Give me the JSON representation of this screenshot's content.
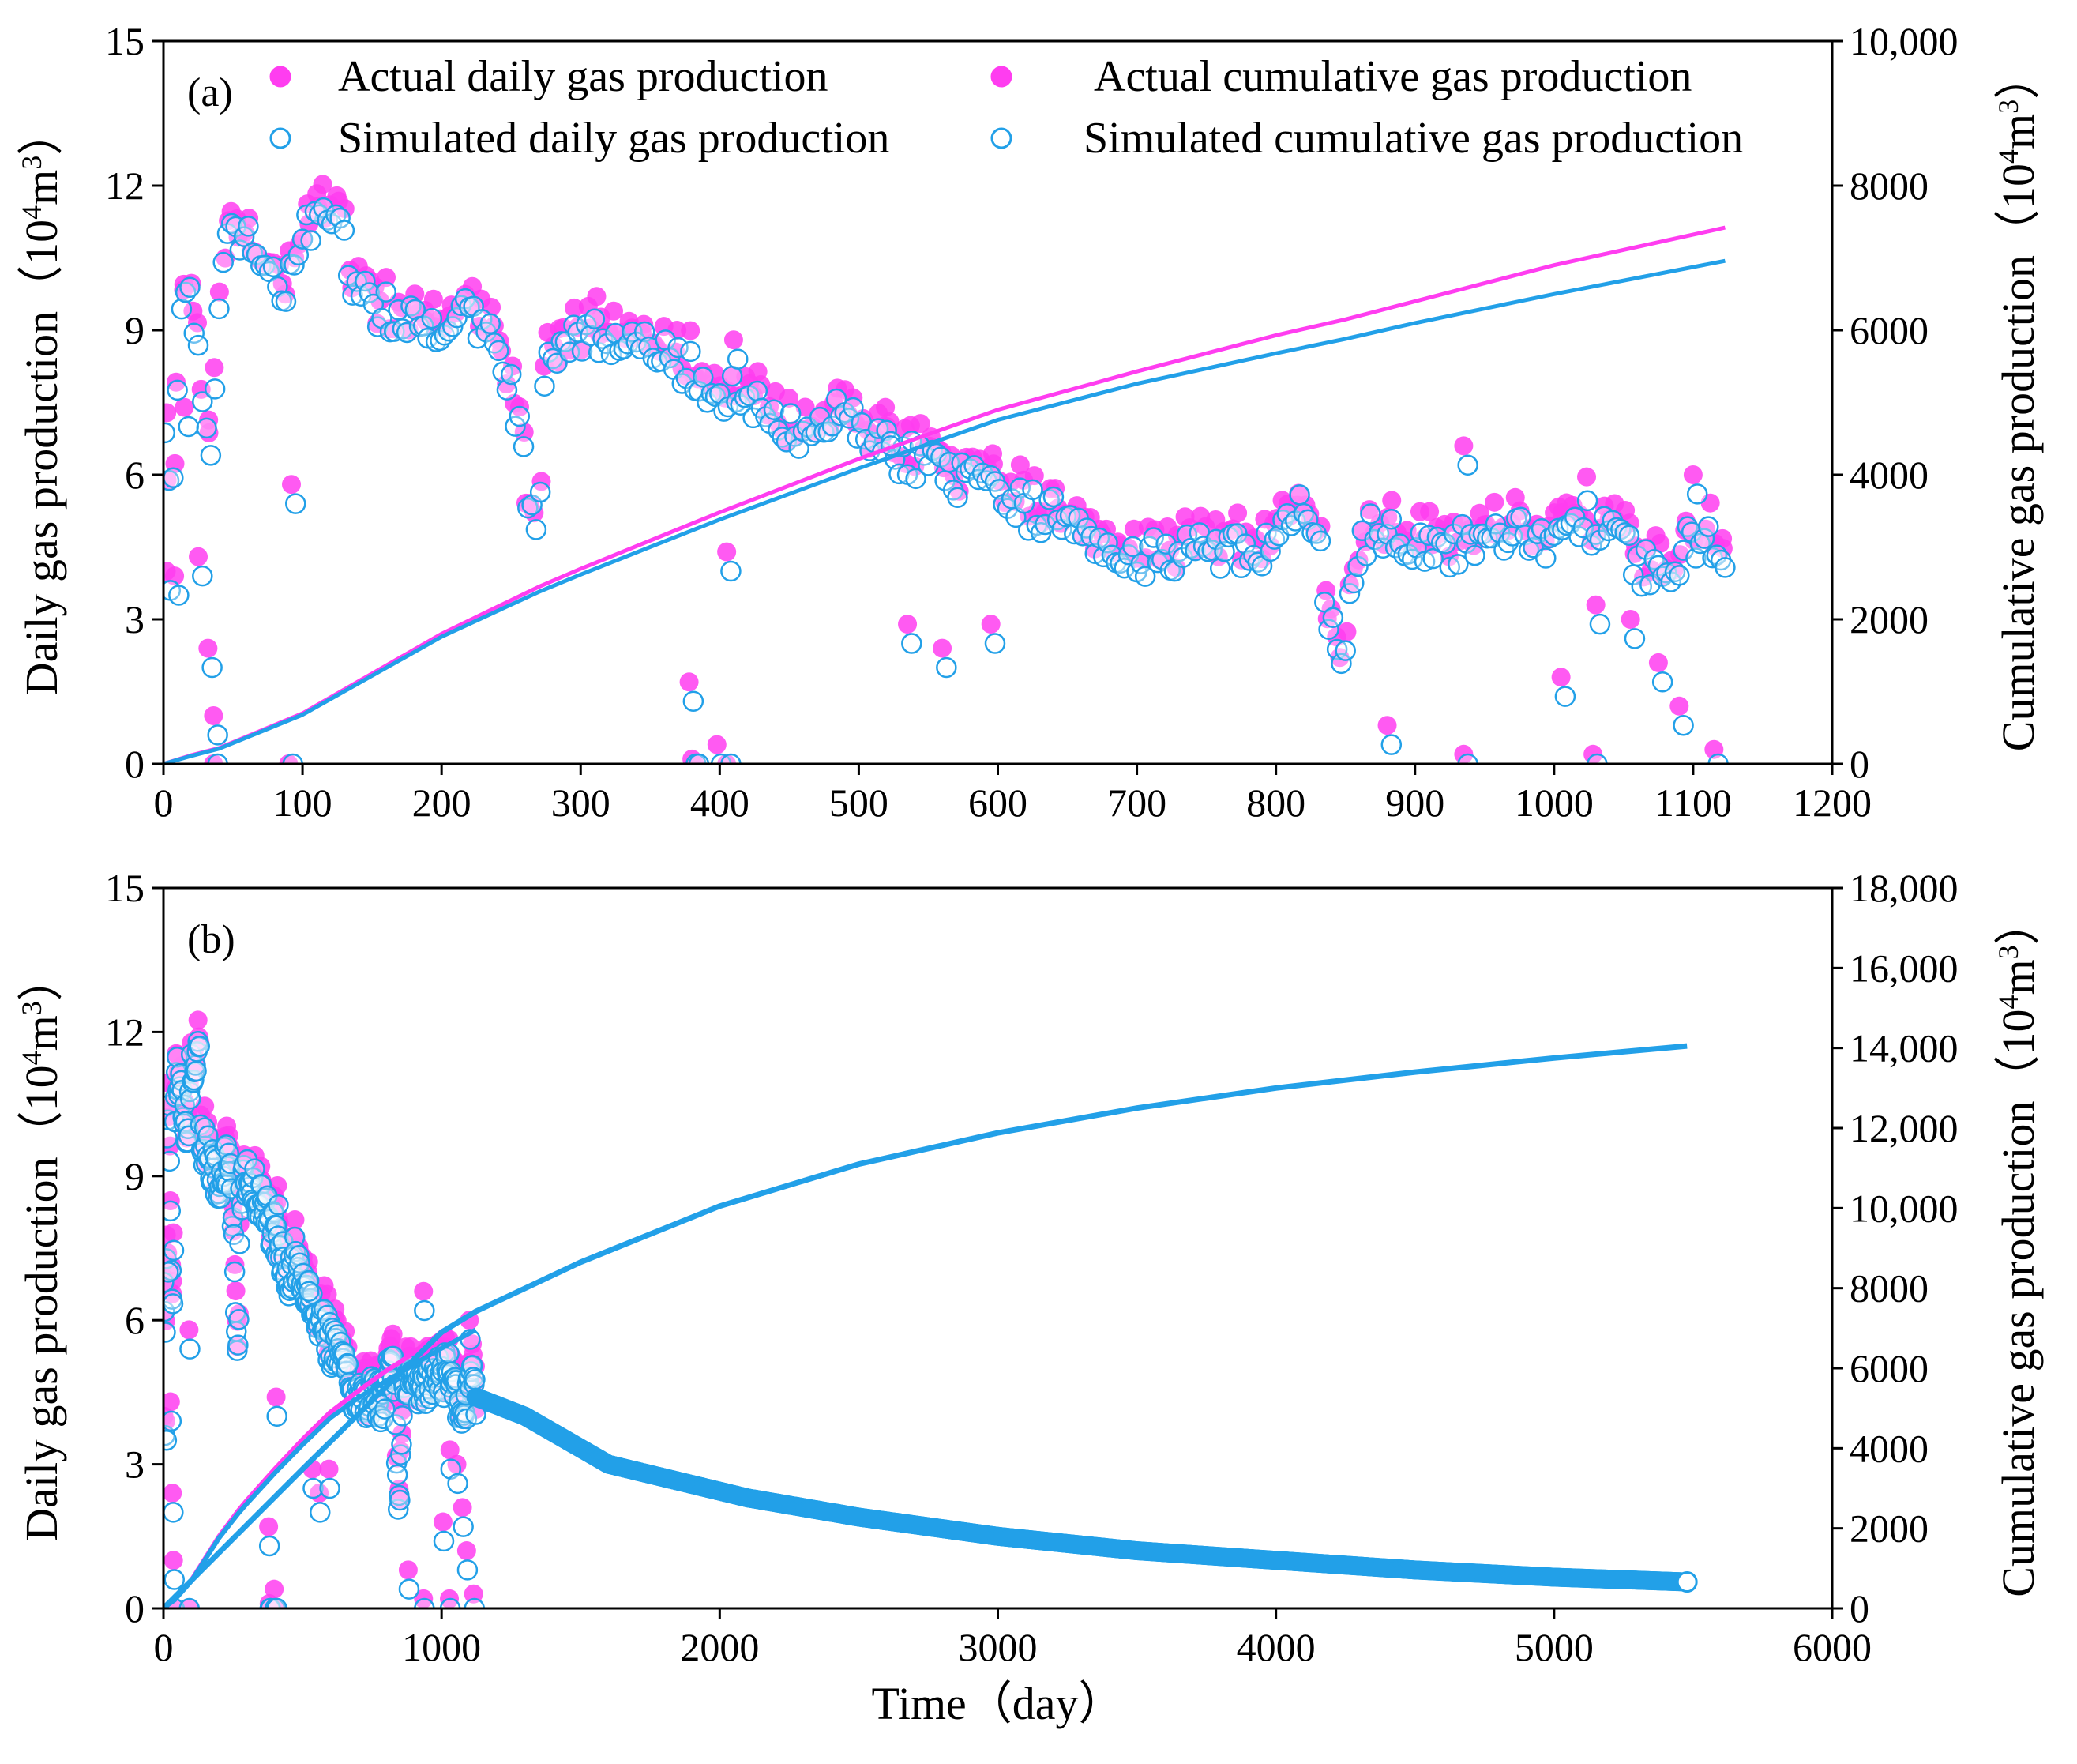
{
  "colors": {
    "actual": "#ff3df0",
    "simulated": "#22a0e8",
    "axis": "#000000"
  },
  "chart_data": [
    {
      "type": "scatter",
      "panel_label": "(a)",
      "xlim": [
        0,
        1200
      ],
      "ylim_left": [
        0,
        15
      ],
      "ylim_right": [
        0,
        10000
      ],
      "x_ticks": [
        0,
        100,
        200,
        300,
        400,
        500,
        600,
        700,
        800,
        900,
        1000,
        1100,
        1200
      ],
      "x_tick_labels": [
        "0",
        "100",
        "200",
        "300",
        "400",
        "500",
        "600",
        "700",
        "800",
        "900",
        "1000",
        "1100",
        "1200"
      ],
      "y_left_ticks": [
        0,
        3,
        6,
        9,
        12,
        15
      ],
      "y_left_tick_labels": [
        "0",
        "3",
        "6",
        "9",
        "12",
        "15"
      ],
      "y_right_ticks": [
        0,
        2000,
        4000,
        6000,
        8000,
        10000
      ],
      "y_right_tick_labels": [
        "0",
        "2000",
        "4000",
        "6000",
        "8000",
        "10,000"
      ],
      "ylabel_left": {
        "main": "Daily gas production（10",
        "sup": "4",
        "unit": "m",
        "sup2": "3",
        "close": "）"
      },
      "ylabel_right": {
        "main": "Cumulative gas production（10",
        "sup": "4",
        "unit": "m",
        "sup2": "3",
        "close": "）"
      },
      "legend": [
        "Actual daily gas production",
        "Simulated daily gas production",
        "Actual cumulative gas production",
        "Simulated cumulative gas production"
      ],
      "daily_anchor_points": [
        [
          0,
          7.6
        ],
        [
          3,
          6.5
        ],
        [
          8,
          5.5
        ],
        [
          12,
          9.5
        ],
        [
          18,
          10.4
        ],
        [
          22,
          9.2
        ],
        [
          26,
          8.0
        ],
        [
          30,
          6.8
        ],
        [
          35,
          5.8
        ],
        [
          40,
          9.8
        ],
        [
          45,
          11.2
        ],
        [
          55,
          11.0
        ],
        [
          65,
          10.6
        ],
        [
          75,
          10.2
        ],
        [
          85,
          9.6
        ],
        [
          92,
          10.2
        ],
        [
          100,
          11.3
        ],
        [
          110,
          11.2
        ],
        [
          120,
          11.4
        ],
        [
          130,
          11.5
        ],
        [
          132,
          9.8
        ],
        [
          150,
          9.6
        ],
        [
          170,
          9.2
        ],
        [
          190,
          9.0
        ],
        [
          205,
          8.6
        ],
        [
          212,
          9.3
        ],
        [
          225,
          9.3
        ],
        [
          240,
          9.0
        ],
        [
          248,
          8.0
        ],
        [
          255,
          7.2
        ],
        [
          262,
          5.4
        ],
        [
          270,
          5.0
        ],
        [
          275,
          8.6
        ],
        [
          290,
          8.8
        ],
        [
          310,
          9.0
        ],
        [
          330,
          8.7
        ],
        [
          350,
          8.5
        ],
        [
          370,
          8.3
        ],
        [
          385,
          8.0
        ],
        [
          400,
          7.8
        ],
        [
          420,
          7.5
        ],
        [
          440,
          7.0
        ],
        [
          455,
          6.8
        ],
        [
          470,
          7.3
        ],
        [
          490,
          7.1
        ],
        [
          505,
          6.8
        ],
        [
          520,
          6.6
        ],
        [
          540,
          6.3
        ],
        [
          560,
          6.0
        ],
        [
          580,
          5.8
        ],
        [
          600,
          5.5
        ],
        [
          620,
          5.3
        ],
        [
          640,
          5.2
        ],
        [
          660,
          5.0
        ],
        [
          680,
          4.5
        ],
        [
          700,
          4.3
        ],
        [
          720,
          4.4
        ],
        [
          740,
          4.4
        ],
        [
          760,
          4.5
        ],
        [
          780,
          4.3
        ],
        [
          800,
          4.4
        ],
        [
          815,
          5.3
        ],
        [
          830,
          4.8
        ],
        [
          840,
          2.8
        ],
        [
          848,
          2.0
        ],
        [
          858,
          4.2
        ],
        [
          870,
          4.9
        ],
        [
          890,
          4.7
        ],
        [
          910,
          4.5
        ],
        [
          930,
          4.5
        ],
        [
          950,
          4.7
        ],
        [
          970,
          4.9
        ],
        [
          990,
          4.8
        ],
        [
          1005,
          4.5
        ],
        [
          1015,
          5.2
        ],
        [
          1030,
          4.9
        ],
        [
          1045,
          4.6
        ],
        [
          1060,
          4.2
        ],
        [
          1075,
          3.8
        ],
        [
          1090,
          4.3
        ],
        [
          1105,
          4.8
        ],
        [
          1120,
          4.4
        ]
      ],
      "daily_outliers": [
        [
          2,
          4.0
        ],
        [
          8,
          3.9
        ],
        [
          15,
          7.4
        ],
        [
          25,
          4.3
        ],
        [
          32,
          2.4
        ],
        [
          36,
          1.0
        ],
        [
          36,
          0.0
        ],
        [
          90,
          0.0
        ],
        [
          92,
          5.8
        ],
        [
          378,
          1.7
        ],
        [
          380,
          0.1
        ],
        [
          382,
          0.0
        ],
        [
          398,
          0.4
        ],
        [
          405,
          4.4
        ],
        [
          405,
          0.0
        ],
        [
          410,
          8.8
        ],
        [
          520,
          7.0
        ],
        [
          535,
          2.9
        ],
        [
          560,
          2.4
        ],
        [
          595,
          2.9
        ],
        [
          880,
          0.8
        ],
        [
          935,
          0.2
        ],
        [
          935,
          6.6
        ],
        [
          1005,
          1.8
        ],
        [
          1028,
          0.2
        ],
        [
          1030,
          3.3
        ],
        [
          1055,
          3.0
        ],
        [
          1075,
          2.1
        ],
        [
          1090,
          1.2
        ],
        [
          1115,
          0.3
        ],
        [
          1100,
          6.0
        ]
      ],
      "cumulative_actual": [
        [
          0,
          0
        ],
        [
          20,
          120
        ],
        [
          40,
          220
        ],
        [
          100,
          700
        ],
        [
          200,
          1800
        ],
        [
          270,
          2450
        ],
        [
          300,
          2700
        ],
        [
          400,
          3480
        ],
        [
          500,
          4220
        ],
        [
          600,
          4900
        ],
        [
          700,
          5430
        ],
        [
          800,
          5930
        ],
        [
          850,
          6150
        ],
        [
          900,
          6400
        ],
        [
          1000,
          6900
        ],
        [
          1123,
          7420
        ]
      ],
      "cumulative_simulated": [
        [
          0,
          0
        ],
        [
          20,
          110
        ],
        [
          40,
          210
        ],
        [
          100,
          680
        ],
        [
          200,
          1760
        ],
        [
          270,
          2380
        ],
        [
          300,
          2620
        ],
        [
          400,
          3380
        ],
        [
          500,
          4090
        ],
        [
          600,
          4760
        ],
        [
          700,
          5260
        ],
        [
          800,
          5680
        ],
        [
          850,
          5880
        ],
        [
          900,
          6100
        ],
        [
          1000,
          6500
        ],
        [
          1123,
          6960
        ]
      ]
    },
    {
      "type": "scatter",
      "panel_label": "(b)",
      "xlim": [
        0,
        6000
      ],
      "ylim_left": [
        0,
        15
      ],
      "ylim_right": [
        0,
        18000
      ],
      "x_ticks": [
        0,
        1000,
        2000,
        3000,
        4000,
        5000,
        6000
      ],
      "x_tick_labels": [
        "0",
        "1000",
        "2000",
        "3000",
        "4000",
        "5000",
        "6000"
      ],
      "y_left_ticks": [
        0,
        3,
        6,
        9,
        12,
        15
      ],
      "y_left_tick_labels": [
        "0",
        "3",
        "6",
        "9",
        "12",
        "15"
      ],
      "y_right_ticks": [
        0,
        2000,
        4000,
        6000,
        8000,
        10000,
        12000,
        14000,
        16000,
        18000
      ],
      "y_right_tick_labels": [
        "0",
        "2000",
        "4000",
        "6000",
        "8000",
        "10,000",
        "12,000",
        "14,000",
        "16,000",
        "18,000"
      ],
      "xlabel": "Time（day）",
      "ylabel_left": {
        "main": "Daily gas production（10",
        "sup": "4",
        "unit": "m",
        "sup2": "3",
        "close": "）"
      },
      "ylabel_right": {
        "main": "Cumulative gas production（10",
        "sup": "4",
        "unit": "m",
        "sup2": "3",
        "close": "）"
      },
      "forecast_daily": [
        [
          1123,
          4.4
        ],
        [
          1300,
          4.0
        ],
        [
          1600,
          3.0
        ],
        [
          2100,
          2.3
        ],
        [
          2500,
          1.9
        ],
        [
          3000,
          1.5
        ],
        [
          3500,
          1.2
        ],
        [
          4000,
          1.0
        ],
        [
          4500,
          0.8
        ],
        [
          5000,
          0.65
        ],
        [
          5478,
          0.55
        ]
      ],
      "cumulative_forecast": [
        [
          0,
          0
        ],
        [
          500,
          3480
        ],
        [
          1000,
          6900
        ],
        [
          1123,
          7420
        ],
        [
          1500,
          8650
        ],
        [
          2000,
          10050
        ],
        [
          2500,
          11100
        ],
        [
          3000,
          11880
        ],
        [
          3500,
          12500
        ],
        [
          4000,
          13000
        ],
        [
          4500,
          13400
        ],
        [
          5000,
          13750
        ],
        [
          5478,
          14050
        ]
      ]
    }
  ]
}
